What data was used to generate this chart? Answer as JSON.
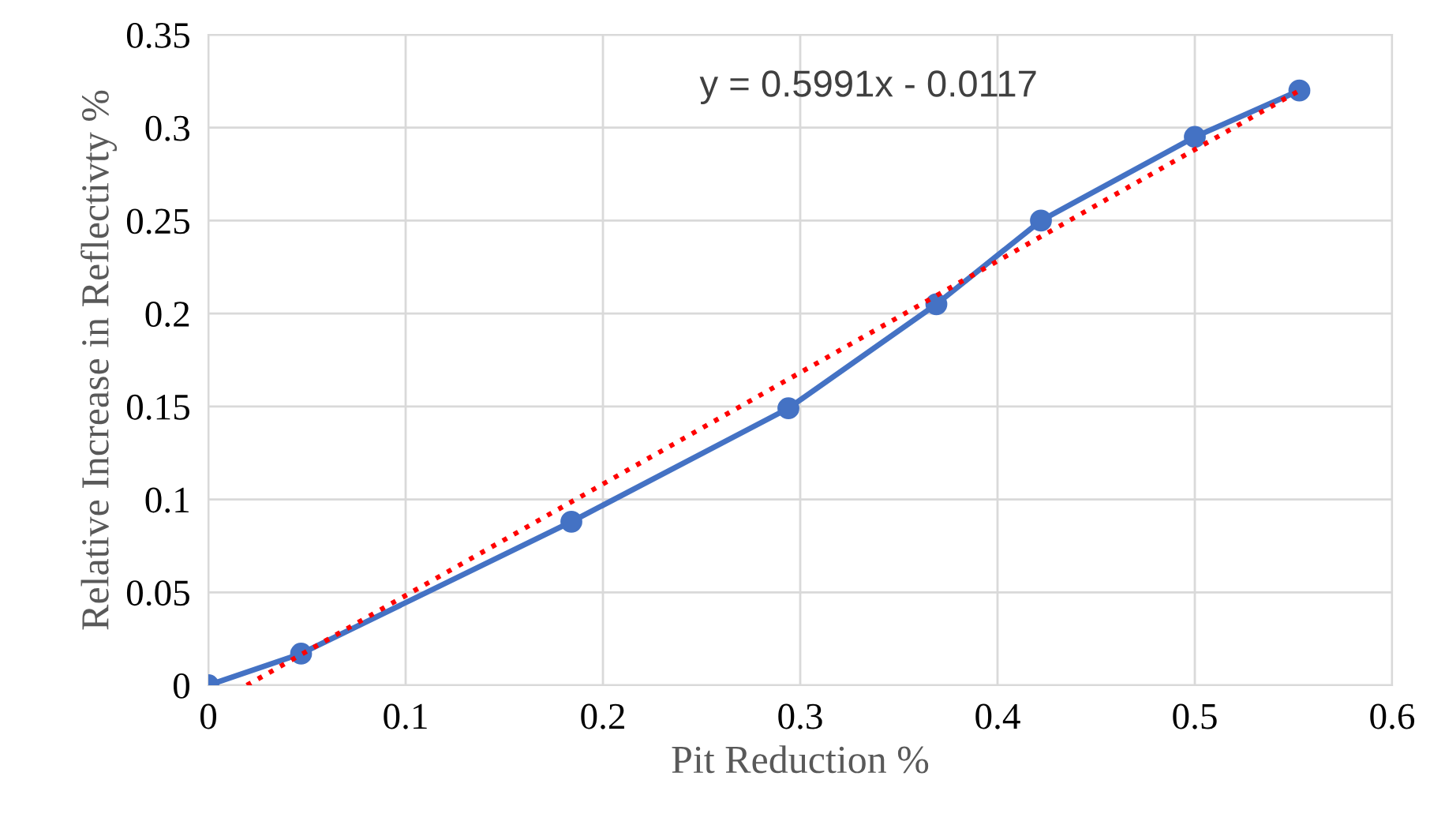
{
  "chart_data": {
    "type": "line",
    "xlabel": "Pit Reduction %",
    "ylabel": "Relative Increase in Reflectivty %",
    "series": [
      {
        "color": "#4472c4",
        "marker": "circle",
        "line_style": "solid",
        "x": [
          0,
          0.047,
          0.184,
          0.294,
          0.369,
          0.422,
          0.5,
          0.553
        ],
        "values": [
          0,
          0.017,
          0.088,
          0.149,
          0.205,
          0.25,
          0.295,
          0.32
        ]
      },
      {
        "color": "#ff0000",
        "marker": "none",
        "line_style": "dotted",
        "x": [
          0.0195,
          0.553
        ],
        "values": [
          0,
          0.32
        ]
      }
    ],
    "annotations": [
      "y = 0.5991x - 0.0117"
    ],
    "xlim": [
      0,
      0.6
    ],
    "xticks": [
      0,
      0.1,
      0.2,
      0.3,
      0.4,
      0.5,
      0.6
    ],
    "ylim": [
      0,
      0.35
    ],
    "yticks": [
      0,
      0.05,
      0.1,
      0.15,
      0.2,
      0.25,
      0.3,
      0.35
    ],
    "grid": true
  }
}
